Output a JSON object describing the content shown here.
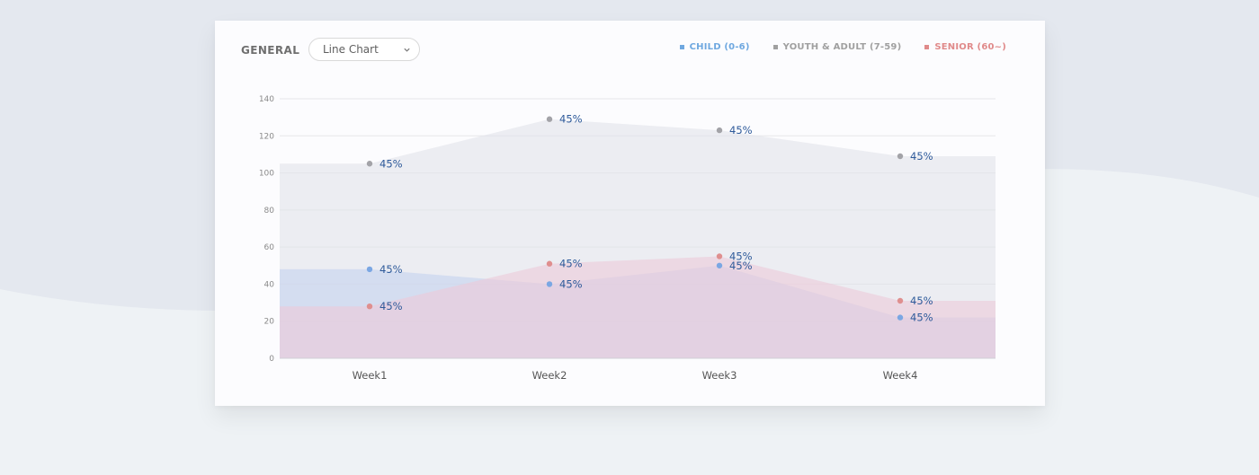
{
  "card": {
    "title": "GENERAL"
  },
  "chart_type_select": {
    "value": "Line Chart",
    "icon": "chevron-down-icon"
  },
  "legend": [
    {
      "label": "CHILD (0-6)",
      "color": "#6fa8e0"
    },
    {
      "label": "YOUTH & ADULT (7-59)",
      "color": "#a0a0a0"
    },
    {
      "label": "SENIOR (60~)",
      "color": "#e08a8a"
    }
  ],
  "chart_data": {
    "type": "area",
    "categories": [
      "Week1",
      "Week2",
      "Week3",
      "Week4"
    ],
    "ylim": [
      0,
      140
    ],
    "yticks": [
      0,
      20,
      40,
      60,
      80,
      100,
      120,
      140
    ],
    "grid": true,
    "legend_position": "top-right",
    "series": [
      {
        "name": "CHILD (0-6)",
        "values": [
          48,
          40,
          50,
          22
        ],
        "labels": [
          "45%",
          "45%",
          "45%",
          "45%"
        ],
        "color": "#7ba7e3",
        "fill": "#c4d2ef"
      },
      {
        "name": "YOUTH & ADULT (7-59)",
        "values": [
          105,
          129,
          123,
          109
        ],
        "labels": [
          "45%",
          "45%",
          "45%",
          "45%"
        ],
        "color": "#a3a3a8",
        "fill": "#e1e3ea"
      },
      {
        "name": "SENIOR (60~)",
        "values": [
          28,
          51,
          55,
          31
        ],
        "labels": [
          "45%",
          "45%",
          "45%",
          "45%"
        ],
        "color": "#df8f8f",
        "fill": "#ecc9d8"
      }
    ]
  }
}
